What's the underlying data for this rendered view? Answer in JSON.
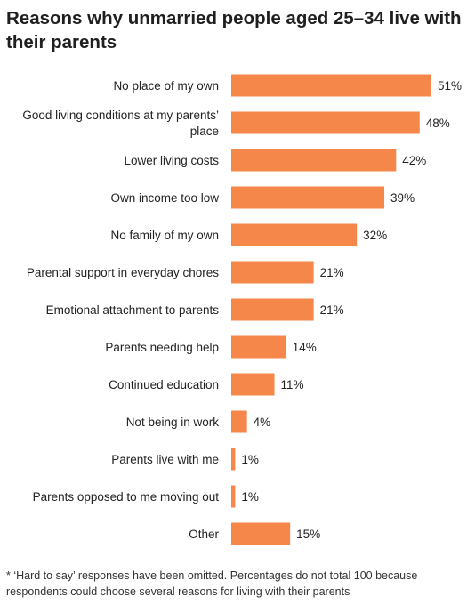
{
  "title": "Reasons why unmarried people aged 25–34 live with their parents",
  "footnote": "* ‘Hard to say’ responses have been omitted. Percentages do not total 100 because respondents could choose several reasons for living with their parents",
  "colors": {
    "bar": "#F5874A",
    "text": "#222222"
  },
  "chart_data": {
    "type": "bar",
    "orientation": "horizontal",
    "title": "Reasons why unmarried people aged 25–34 live with their parents",
    "xlabel": "",
    "ylabel": "",
    "unit": "%",
    "xlim": [
      0,
      51
    ],
    "grid": false,
    "legend": "none",
    "categories": [
      [
        "No place of my own"
      ],
      [
        "Good living conditions at my parents’",
        "place"
      ],
      [
        "Lower living costs"
      ],
      [
        "Own income too low"
      ],
      [
        "No family of my own"
      ],
      [
        "Parental support in everyday chores"
      ],
      [
        "Emotional attachment to parents"
      ],
      [
        "Parents needing help"
      ],
      [
        "Continued education"
      ],
      [
        "Not being in work"
      ],
      [
        "Parents live with me"
      ],
      [
        "Parents opposed to me moving out"
      ],
      [
        "Other"
      ]
    ],
    "values": [
      51,
      48,
      42,
      39,
      32,
      21,
      21,
      14,
      11,
      4,
      1,
      1,
      15
    ],
    "value_labels": [
      "51%",
      "48%",
      "42%",
      "39%",
      "32%",
      "21%",
      "21%",
      "14%",
      "11%",
      "4%",
      "1%",
      "1%",
      "15%"
    ]
  }
}
